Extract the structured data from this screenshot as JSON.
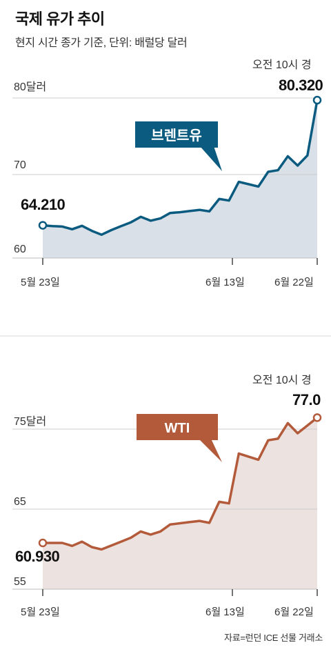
{
  "title": "국제 유가 추이",
  "subtitle": "현지 시간 종가 기준, 단위: 배럴당 달러",
  "source": "자료=런던 ICE 선물 거래소",
  "chart_data": [
    {
      "type": "area",
      "series": [
        {
          "name": "브렌트유",
          "x": [
            "5월 23일",
            "",
            "",
            "",
            "",
            "",
            "",
            "",
            "",
            "",
            "",
            "",
            "",
            "",
            "",
            "",
            "",
            "",
            "",
            "6월 13일",
            "",
            "",
            "",
            "",
            "",
            "",
            "",
            "",
            "6월 22일"
          ],
          "values": [
            64.21,
            64.1,
            64.05,
            63.7,
            64.15,
            63.5,
            63.0,
            63.6,
            64.1,
            64.6,
            65.3,
            64.8,
            65.1,
            65.8,
            65.9,
            66.05,
            66.2,
            66.0,
            67.6,
            67.4,
            69.8,
            69.5,
            69.2,
            71.1,
            71.3,
            73.1,
            71.9,
            73.2,
            80.32
          ]
        }
      ],
      "highlight": {
        "start_value": "64.210",
        "end_value": "80.320",
        "end_time": "오전 10시 경"
      },
      "y_ticks": [
        "80달러",
        "70",
        "60"
      ],
      "x_ticks": [
        "5월 23일",
        "6월 13일",
        "6월 22일"
      ],
      "ylim": [
        60,
        80.6
      ],
      "grid": true,
      "color": "#0b5b80",
      "fill": "#d9e0e7"
    },
    {
      "type": "area",
      "series": [
        {
          "name": "WTI",
          "x": [
            "5월 23일",
            "",
            "",
            "",
            "",
            "",
            "",
            "",
            "",
            "",
            "",
            "",
            "",
            "",
            "",
            "",
            "",
            "",
            "",
            "6월 13일",
            "",
            "",
            "",
            "",
            "",
            "",
            "",
            "",
            "6월 22일"
          ],
          "values": [
            60.93,
            60.93,
            60.93,
            60.55,
            61.1,
            60.4,
            60.1,
            60.6,
            61.1,
            61.6,
            62.4,
            62.0,
            62.4,
            63.3,
            63.45,
            63.6,
            63.75,
            63.5,
            66.2,
            66.0,
            72.4,
            72.0,
            71.6,
            74.1,
            74.3,
            76.3,
            75.0,
            76.0,
            77.0
          ]
        }
      ],
      "highlight": {
        "start_value": "60.930",
        "end_value": "77.0",
        "end_time": "오전 10시 경"
      },
      "y_ticks": [
        "75달러",
        "65",
        "55"
      ],
      "x_ticks": [
        "5월 23일",
        "6월 13일",
        "6월 22일"
      ],
      "ylim": [
        55,
        77.3
      ],
      "grid": true,
      "color": "#b25a3a",
      "fill": "#ece2df"
    }
  ]
}
